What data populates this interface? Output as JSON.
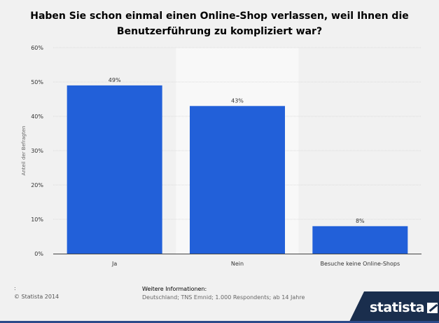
{
  "chart_data": {
    "type": "bar",
    "title": "Haben Sie schon einmal einen Online-Shop verlassen, weil Ihnen die Benutzerführung zu kompliziert war?",
    "categories": [
      "Ja",
      "Nein",
      "Besuche keine Online-Shops"
    ],
    "values": [
      49,
      43,
      8
    ],
    "value_labels": [
      "49%",
      "43%",
      "8%"
    ],
    "xlabel": "",
    "ylabel": "Anteil der Befragten",
    "ylim": [
      0,
      60
    ],
    "yticks": [
      "0%",
      "10%",
      "20%",
      "30%",
      "40%",
      "50%",
      "60%"
    ],
    "grid": true,
    "bar_color": "#2260d9"
  },
  "footer": {
    "colon": ":",
    "copyright": "© Statista 2014",
    "info_heading": "Weitere Informationen:",
    "info_text": "Deutschland; TNS Emnid; 1.000 Respondents; ab 14 Jahre"
  },
  "brand": {
    "name": "statista",
    "icon": "statista-logo-icon",
    "band_color": "#1a2e4d"
  }
}
